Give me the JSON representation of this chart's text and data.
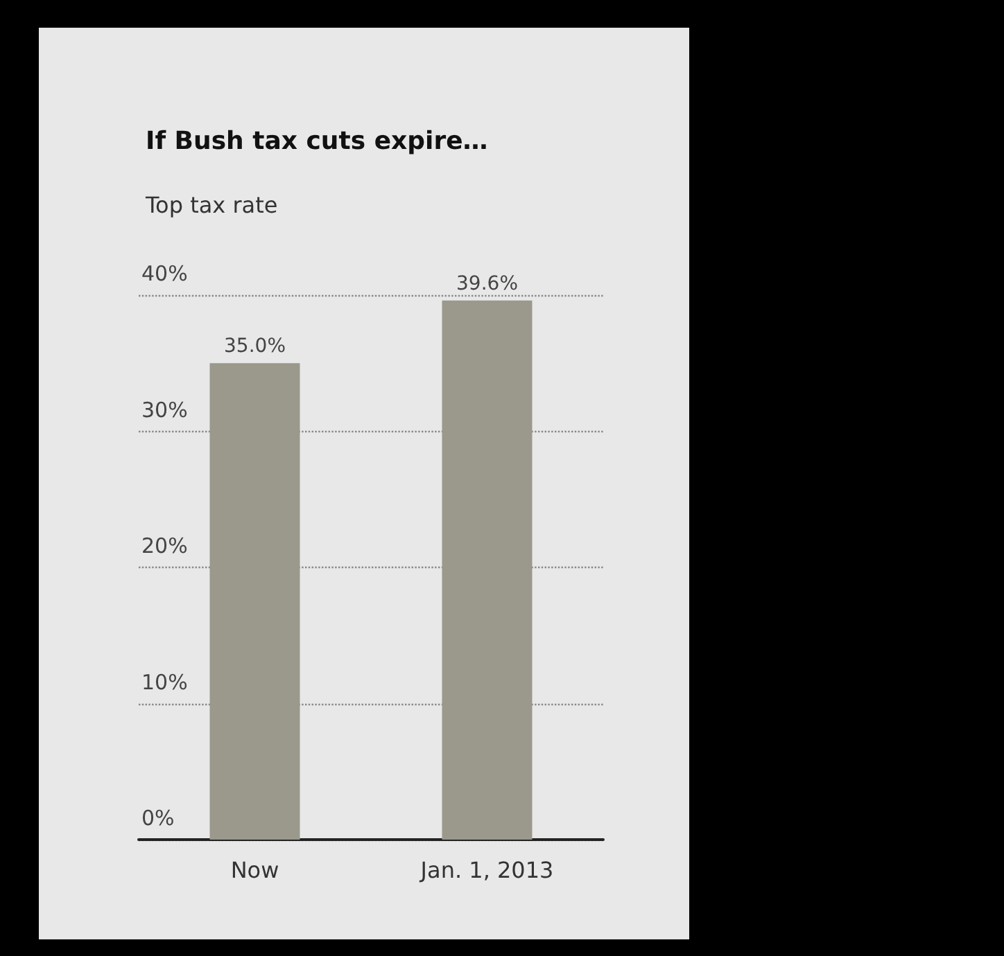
{
  "chart_data": {
    "type": "bar",
    "title": "If Bush tax cuts expire…",
    "subtitle": "Top tax rate",
    "categories": [
      "Now",
      "Jan. 1, 2013"
    ],
    "values": [
      35.0,
      39.6
    ],
    "color": "#9b988c",
    "value_labels": [
      "35.0%",
      "39.6%"
    ],
    "ylim": [
      0,
      40
    ],
    "yticks": [
      {
        "value": 0,
        "label": "0%"
      },
      {
        "value": 10,
        "label": "10%"
      },
      {
        "value": 20,
        "label": "20%"
      },
      {
        "value": 30,
        "label": "30%"
      },
      {
        "value": 40,
        "label": "40%"
      }
    ],
    "grid": "y"
  }
}
